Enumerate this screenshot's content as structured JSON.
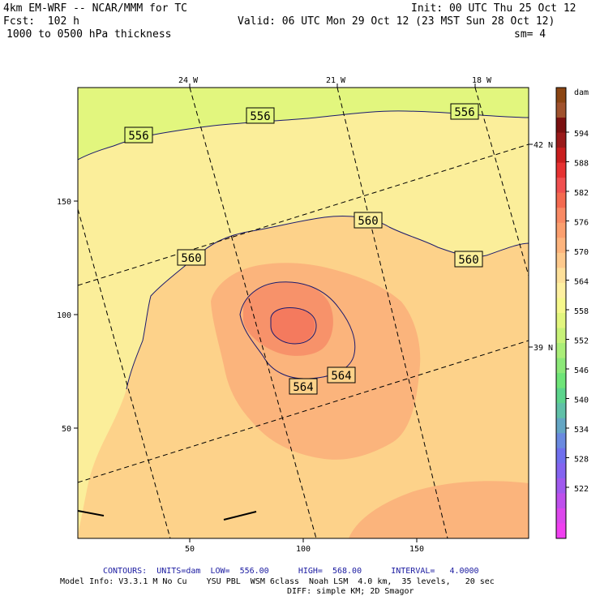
{
  "header": {
    "model": "4km EM-WRF -- NCAR/MMM for TC",
    "forecast": "Fcst:  102 h",
    "field": "1000 to 0500 hPa thickness",
    "init": "Init: 00 UTC Thu 25 Oct 12",
    "valid": "Valid: 06 UTC Mon 29 Oct 12 (23 MST Sun 28 Oct 12)",
    "smoothing": "sm= 4"
  },
  "axes": {
    "top_labels": [
      "24 W",
      "21 W",
      "18 W"
    ],
    "right_labels": [
      "42 N",
      "39 N"
    ],
    "left_labels": [
      "150",
      "100",
      "50"
    ],
    "bottom_labels": [
      "50",
      "100",
      "150"
    ]
  },
  "contour_labels": {
    "c556": "556",
    "c560": "560",
    "c564": "564"
  },
  "colorbar": {
    "unit": "dam",
    "levels": [
      "594",
      "588",
      "582",
      "576",
      "570",
      "564",
      "558",
      "552",
      "546",
      "540",
      "534",
      "528",
      "522"
    ],
    "colors": [
      "#8b4513",
      "#a0522d",
      "#7a1010",
      "#9a1a1a",
      "#c81e1e",
      "#e63232",
      "#f05050",
      "#f46a50",
      "#f98a64",
      "#fb9f6e",
      "#fdb47d",
      "#fdc98c",
      "#fde09a",
      "#fef0a0",
      "#f6f88c",
      "#e2f67e",
      "#c8f278",
      "#aaee78",
      "#8ce878",
      "#6ee478",
      "#5cd48c",
      "#60c0a8",
      "#64a6c4",
      "#6a8ae0",
      "#7070ee",
      "#8464f0",
      "#a05aee",
      "#be50ec",
      "#dc48ec",
      "#f040f0"
    ]
  },
  "footer": {
    "contours": "CONTOURS:  UNITS=dam  LOW=  556.00      HIGH=  568.00      INTERVAL=   4.0000",
    "model_info": "Model Info: V3.3.1 M No Cu    YSU PBL  WSM 6class  Noah LSM  4.0 km,  35 levels,   20 sec",
    "diff": "DIFF: simple KM; 2D Smagor"
  },
  "map_colors": {
    "band_552_556": "#e2f67e",
    "band_556_560": "#fbee9a",
    "band_560_564": "#fdd28a",
    "band_564_568": "#fbb47c",
    "band_568_572": "#f7926a",
    "band_572_576": "#f47a5e",
    "contour_line": "#1a1a6e"
  }
}
